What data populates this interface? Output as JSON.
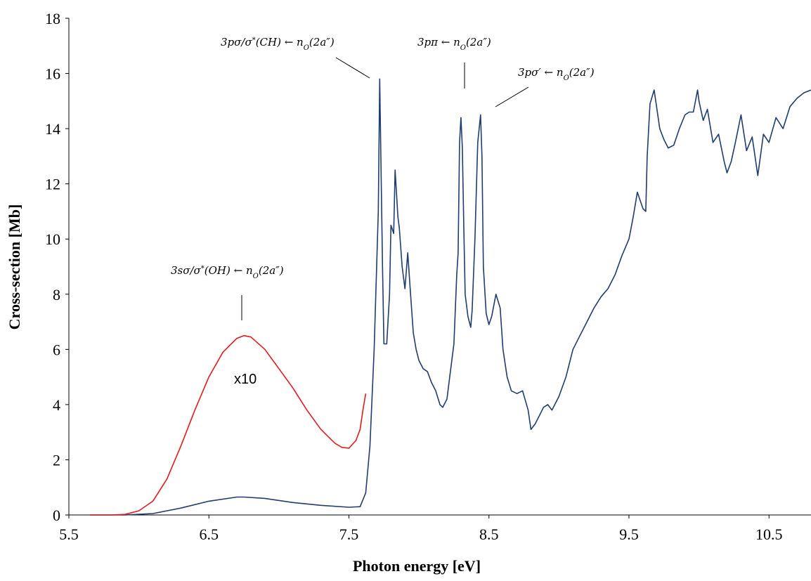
{
  "chart_data": {
    "type": "line",
    "xlabel": "Photon energy [eV]",
    "ylabel": "Cross-section [Mb]",
    "xlim": [
      5.5,
      10.8
    ],
    "ylim": [
      0,
      18
    ],
    "xticks": [
      "5.5",
      "6.5",
      "7.5",
      "8.5",
      "9.5",
      "10.5"
    ],
    "yticks": [
      "0",
      "2",
      "4",
      "6",
      "8",
      "10",
      "12",
      "14",
      "16",
      "18"
    ],
    "grid": false,
    "colors": {
      "main": "#1f3d6e",
      "scaled": "#e41a1c"
    },
    "scaled_label": "x10",
    "series": [
      {
        "color": "#1f3d6e",
        "x": [
          5.65,
          5.9,
          6.1,
          6.3,
          6.5,
          6.7,
          6.75,
          6.9,
          7.1,
          7.3,
          7.5,
          7.58,
          7.62,
          7.65,
          7.68,
          7.71,
          7.72,
          7.74,
          7.75,
          7.77,
          7.79,
          7.8,
          7.82,
          7.83,
          7.85,
          7.86,
          7.88,
          7.9,
          7.92,
          7.94,
          7.96,
          7.98,
          8.0,
          8.03,
          8.06,
          8.09,
          8.12,
          8.15,
          8.17,
          8.2,
          8.22,
          8.25,
          8.27,
          8.28,
          8.29,
          8.3,
          8.31,
          8.32,
          8.33,
          8.35,
          8.37,
          8.38,
          8.4,
          8.42,
          8.44,
          8.45,
          8.46,
          8.48,
          8.5,
          8.52,
          8.55,
          8.58,
          8.6,
          8.63,
          8.66,
          8.7,
          8.74,
          8.78,
          8.8,
          8.83,
          8.86,
          8.89,
          8.92,
          8.95,
          9.0,
          9.05,
          9.1,
          9.15,
          9.2,
          9.25,
          9.3,
          9.35,
          9.4,
          9.45,
          9.5,
          9.53,
          9.56,
          9.6,
          9.62,
          9.63,
          9.65,
          9.68,
          9.72,
          9.75,
          9.78,
          9.82,
          9.86,
          9.9,
          9.93,
          9.96,
          9.99,
          10.0,
          10.03,
          10.06,
          10.1,
          10.14,
          10.18,
          10.2,
          10.23,
          10.26,
          10.3,
          10.34,
          10.38,
          10.42,
          10.46,
          10.5,
          10.55,
          10.6,
          10.65,
          10.7,
          10.75,
          10.8
        ],
        "values": [
          0,
          0,
          0.05,
          0.25,
          0.5,
          0.65,
          0.65,
          0.6,
          0.45,
          0.35,
          0.28,
          0.3,
          0.8,
          2.5,
          6,
          11,
          15.8,
          9,
          6.2,
          6.2,
          8,
          10.5,
          10.2,
          12.5,
          10.8,
          10.4,
          9,
          8.2,
          9.5,
          8,
          6.6,
          6,
          5.6,
          5.3,
          5.2,
          4.8,
          4.5,
          4,
          3.9,
          4.2,
          5,
          6.2,
          8.7,
          9.5,
          13.5,
          14.4,
          13.3,
          10.5,
          8,
          7.2,
          6.8,
          7.4,
          10,
          13.5,
          14.5,
          13,
          9,
          7.3,
          6.9,
          7.2,
          8,
          7.5,
          6,
          5,
          4.5,
          4.4,
          4.5,
          3.8,
          3.1,
          3.3,
          3.6,
          3.9,
          4,
          3.8,
          4.3,
          5,
          6,
          6.5,
          7,
          7.5,
          7.9,
          8.2,
          8.7,
          9.4,
          10,
          10.8,
          11.7,
          11.1,
          11,
          13,
          14.9,
          15.4,
          14,
          13.6,
          13.3,
          13.4,
          14,
          14.5,
          14.6,
          14.6,
          15.4,
          15,
          14.3,
          14.7,
          13.5,
          13.8,
          12.8,
          12.4,
          12.8,
          13.5,
          14.5,
          13.2,
          13.7,
          12.3,
          13.8,
          13.5,
          14.4,
          14,
          14.8,
          15.1,
          15.3,
          15.4
        ]
      },
      {
        "color": "#e41a1c",
        "x": [
          5.65,
          5.8,
          5.9,
          6.0,
          6.1,
          6.2,
          6.3,
          6.4,
          6.5,
          6.6,
          6.7,
          6.75,
          6.8,
          6.9,
          7.0,
          7.1,
          7.2,
          7.3,
          7.4,
          7.45,
          7.5,
          7.55,
          7.58,
          7.6,
          7.62
        ],
        "values": [
          0,
          0,
          0.02,
          0.15,
          0.5,
          1.3,
          2.5,
          3.8,
          5,
          5.9,
          6.4,
          6.5,
          6.45,
          6.0,
          5.3,
          4.6,
          3.8,
          3.1,
          2.6,
          2.45,
          2.42,
          2.7,
          3.1,
          3.8,
          4.4
        ]
      }
    ],
    "annotations": [
      {
        "text": "3sσ/σ*(OH) ← nO(2a″)",
        "x": 6.75,
        "y": 7.0
      },
      {
        "text": "3pσ/σ*(CH) ← nO(2a″)",
        "x": 7.71,
        "y": 15.9
      },
      {
        "text": "3pπ ← nO(2a″)",
        "x": 8.29,
        "y": 15.1
      },
      {
        "text": "3pσ′ ← nO(2a″)",
        "x": 8.5,
        "y": 14.6
      }
    ]
  }
}
